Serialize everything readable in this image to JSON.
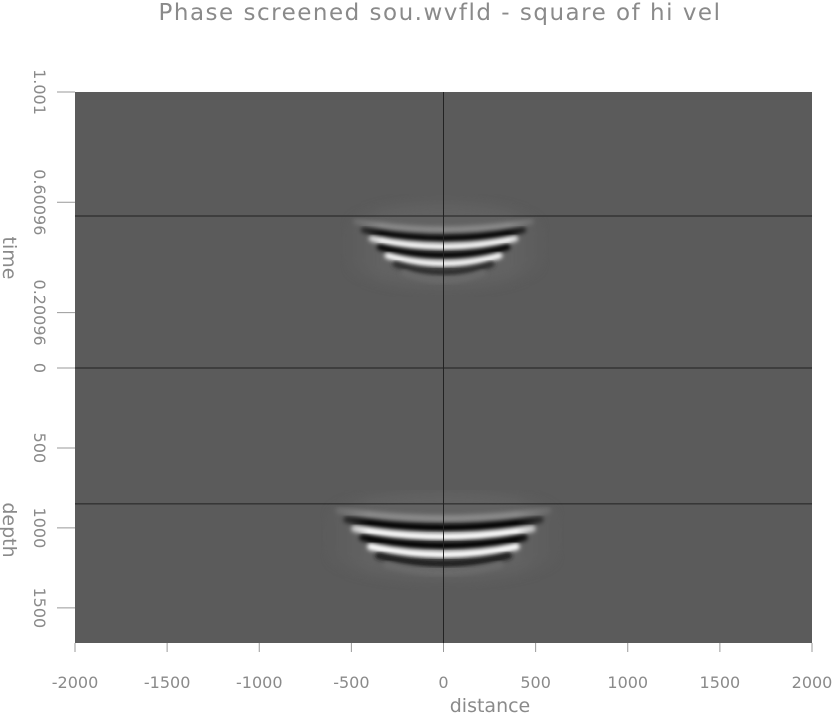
{
  "chart_data": {
    "type": "heatmap",
    "title": "Phase screened sou.wvfld - square of hi vel",
    "xlabel": "distance",
    "xlim": [
      -2000,
      2000
    ],
    "xticks": [
      "-2000",
      "-1500",
      "-1000",
      "-500",
      "0",
      "500",
      "1000",
      "1500",
      "2000"
    ],
    "xtick_values": [
      -2000,
      -1500,
      -1000,
      -500,
      0,
      500,
      1000,
      1500,
      2000
    ],
    "panels": [
      {
        "ylabel": "time",
        "yticks": [
          "1.001",
          "0.60096",
          "0.20096",
          "0"
        ],
        "ytick_values": [
          1.001,
          0.60096,
          0.20096,
          0
        ],
        "ylim": [
          1.001,
          0
        ],
        "crosshair": {
          "x": 0,
          "y": 0.56
        }
      },
      {
        "ylabel": "depth",
        "yticks": [
          "0",
          "500",
          "1000",
          "1500"
        ],
        "ytick_values": [
          0,
          500,
          1000,
          1500
        ],
        "ylim": [
          0,
          1720
        ],
        "crosshair": {
          "x": 0,
          "y": 850
        }
      }
    ],
    "colormap": "grayscale",
    "background_color": "#5b5b5b",
    "grid": false
  }
}
